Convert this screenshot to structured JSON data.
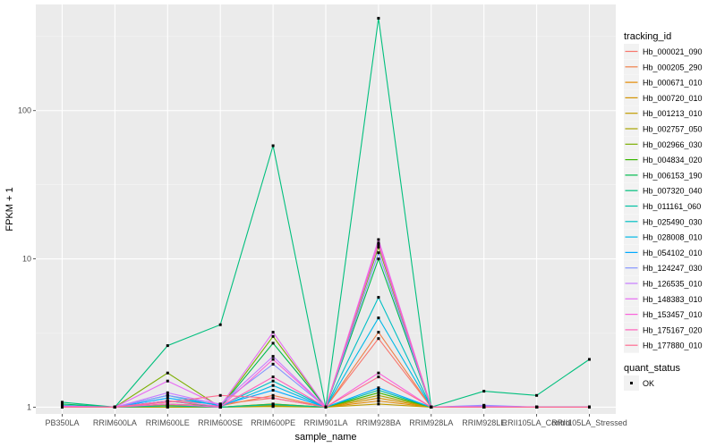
{
  "chart_data": {
    "type": "line",
    "title": "",
    "xlabel": "sample_name",
    "ylabel": "FPKM + 1",
    "y_scale": "log10",
    "ylim": [
      0.9,
      520
    ],
    "yticks": [
      1,
      10,
      100
    ],
    "ytick_labels": [
      "1",
      "10",
      "100"
    ],
    "grid": true,
    "legend_position": "right",
    "categories": [
      "PB350LA",
      "RRIM600LA",
      "RRIM600LE",
      "RRIM600SE",
      "RRIM600PE",
      "RRIM901LA",
      "RRIM928BA",
      "RRIM928LA",
      "RRIM928LE",
      "RRII105LA_Control",
      "RRII105LA_Stressed"
    ],
    "legend_title": "tracking_id",
    "series": [
      {
        "name": "Hb_000021_090",
        "color": "#F8766D",
        "values": [
          1.02,
          1,
          1.1,
          1.05,
          1.15,
          1,
          2.9,
          1,
          1,
          1,
          1
        ]
      },
      {
        "name": "Hb_000205_290",
        "color": "#EF7F49",
        "values": [
          1,
          1,
          1.05,
          1.02,
          1.2,
          1,
          3.2,
          1,
          1,
          1,
          1
        ]
      },
      {
        "name": "Hb_000671_010",
        "color": "#E38900",
        "values": [
          1,
          1,
          1.02,
          1,
          1.05,
          1,
          1.1,
          1,
          1,
          1,
          1
        ]
      },
      {
        "name": "Hb_000720_010",
        "color": "#D39200",
        "values": [
          1,
          1,
          1,
          1,
          1.02,
          1,
          1.15,
          1,
          1,
          1,
          1
        ]
      },
      {
        "name": "Hb_001213_010",
        "color": "#C09B00",
        "values": [
          1,
          1,
          1.03,
          1,
          1.03,
          1,
          1.05,
          1,
          1,
          1,
          1
        ]
      },
      {
        "name": "Hb_002757_050",
        "color": "#A8A400",
        "values": [
          1,
          1,
          1,
          1,
          1.01,
          1,
          1.2,
          1,
          1,
          1,
          1
        ]
      },
      {
        "name": "Hb_002966_030",
        "color": "#7CAE00",
        "values": [
          1,
          1,
          1.7,
          1,
          3.0,
          1,
          12.0,
          1,
          1,
          1,
          1
        ]
      },
      {
        "name": "Hb_004834_020",
        "color": "#39B600",
        "values": [
          1,
          1,
          1.05,
          1,
          1.05,
          1,
          1.25,
          1,
          1,
          1,
          1
        ]
      },
      {
        "name": "Hb_006153_190",
        "color": "#00BB4E",
        "values": [
          1.05,
          1,
          1.1,
          1,
          2.7,
          1,
          10.0,
          1,
          1,
          1,
          1
        ]
      },
      {
        "name": "Hb_007320_040",
        "color": "#00BF7D",
        "values": [
          1.08,
          1,
          2.6,
          3.6,
          58,
          1,
          420,
          1,
          1.28,
          1.2,
          2.1
        ]
      },
      {
        "name": "Hb_011161_060",
        "color": "#00C1A3",
        "values": [
          1,
          1,
          1.02,
          1,
          1.04,
          1,
          1.3,
          1,
          1,
          1,
          1
        ]
      },
      {
        "name": "Hb_025490_030",
        "color": "#00BFC4",
        "values": [
          1.03,
          1,
          1.2,
          1.02,
          1.5,
          1,
          5.5,
          1,
          1.02,
          1,
          1
        ]
      },
      {
        "name": "Hb_028008_010",
        "color": "#00B8E7",
        "values": [
          1,
          1,
          1.1,
          1.01,
          1.4,
          1,
          4.0,
          1,
          1,
          1,
          1
        ]
      },
      {
        "name": "Hb_054102_010",
        "color": "#00A9FF",
        "values": [
          1.01,
          1,
          1.15,
          1.03,
          1.3,
          1,
          1.35,
          1,
          1.01,
          1,
          1
        ]
      },
      {
        "name": "Hb_124247_030",
        "color": "#8494FF",
        "values": [
          1,
          1,
          1.2,
          1.05,
          1.95,
          1,
          11.0,
          1,
          1.03,
          1,
          1
        ]
      },
      {
        "name": "Hb_126535_010",
        "color": "#C77CFF",
        "values": [
          1.02,
          1,
          1.25,
          1.04,
          2.2,
          1,
          12.5,
          1,
          1.02,
          1,
          1
        ]
      },
      {
        "name": "Hb_148383_010",
        "color": "#E76BF3",
        "values": [
          1,
          1,
          1.5,
          1.02,
          3.2,
          1,
          13.5,
          1,
          1,
          1,
          1
        ]
      },
      {
        "name": "Hb_153457_010",
        "color": "#FA62DB",
        "values": [
          1.01,
          1,
          1.05,
          1,
          2.1,
          1,
          1.7,
          1,
          1,
          1,
          1
        ]
      },
      {
        "name": "Hb_175167_020",
        "color": "#FF62BC",
        "values": [
          1,
          1,
          1.1,
          1.01,
          1.6,
          1,
          12.8,
          1,
          1,
          1,
          1
        ]
      },
      {
        "name": "Hb_177880_010",
        "color": "#FF6C91",
        "values": [
          1,
          1,
          1.08,
          1.2,
          1.15,
          1,
          1.6,
          1,
          1,
          1,
          1
        ]
      }
    ],
    "shape_legend_title": "quant_status",
    "shape_legend_items": [
      "OK"
    ]
  }
}
